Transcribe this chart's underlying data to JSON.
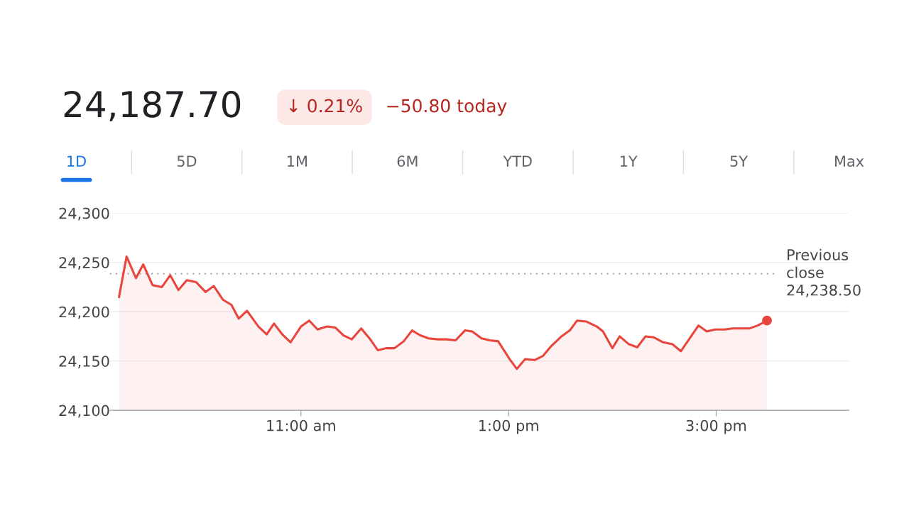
{
  "chart_data": {
    "type": "area",
    "annotations": [
      "24,187.70",
      "↓ 0.21%",
      "−50.80 today",
      "1D",
      "5D",
      "1M",
      "6M",
      "YTD",
      "1Y",
      "5Y",
      "Max"
    ],
    "series": [
      {
        "color": "#e8453c",
        "x": [
          9.247,
          9.32,
          9.41,
          9.48,
          9.57,
          9.66,
          9.74,
          9.82,
          9.9,
          9.99,
          10.08,
          10.16,
          10.25,
          10.33,
          10.4,
          10.48,
          10.59,
          10.67,
          10.74,
          10.82,
          10.9,
          11.0,
          11.08,
          11.16,
          11.25,
          11.33,
          11.41,
          11.49,
          11.58,
          11.66,
          11.74,
          11.82,
          11.9,
          11.99,
          12.07,
          12.15,
          12.23,
          12.32,
          12.4,
          12.49,
          12.58,
          12.65,
          12.74,
          12.82,
          12.9,
          13.01,
          13.08,
          13.16,
          13.25,
          13.33,
          13.41,
          13.51,
          13.59,
          13.66,
          13.75,
          13.85,
          13.91,
          14.0,
          14.07,
          14.16,
          14.24,
          14.32,
          14.4,
          14.49,
          14.58,
          14.66,
          14.83,
          14.91,
          14.99,
          15.08,
          15.16,
          15.24,
          15.32,
          15.4,
          15.49
        ],
        "values": [
          24215,
          24256,
          24234,
          24248,
          24227,
          24225,
          24237,
          24222,
          24232,
          24230,
          24220,
          24226,
          24212,
          24207,
          24193,
          24201,
          24185,
          24177,
          24188,
          24177,
          24169,
          24185,
          24191,
          24182,
          24185,
          24184,
          24176,
          24172,
          24183,
          24173,
          24161,
          24163,
          24163,
          24170,
          24181,
          24176,
          24173,
          24172,
          24172,
          24171,
          24181,
          24180,
          24173,
          24171,
          24170,
          24152,
          24142,
          24152,
          24151,
          24155,
          24165,
          24175,
          24181,
          24191,
          24190,
          24185,
          24180,
          24163,
          24175,
          24167,
          24164,
          24175,
          24174,
          24169,
          24167,
          24160,
          24186,
          24180,
          24182,
          24182,
          24183,
          24183,
          24183,
          24186,
          24191
        ]
      },
      {
        "type": "scatter",
        "color": "#e8453c",
        "x": [
          15.49
        ],
        "values": [
          24191
        ]
      }
    ],
    "xlim": [
      9.16,
      16.28
    ],
    "xticks": [
      {
        "value": 11,
        "label": "11:00 am"
      },
      {
        "value": 13,
        "label": "1:00 pm"
      },
      {
        "value": 15,
        "label": "3:00 pm"
      }
    ],
    "ylim": [
      24100,
      24300
    ],
    "yticks": [
      {
        "value": 24100,
        "label": "24,100"
      },
      {
        "value": 24150,
        "label": "24,150"
      },
      {
        "value": 24200,
        "label": "24,200"
      },
      {
        "value": 24250,
        "label": "24,250"
      },
      {
        "value": 24300,
        "label": "24,300"
      }
    ],
    "grid": "y",
    "ref_lines": [
      {
        "axis": "y",
        "value": 24238.5,
        "label": "Previous\nclose\n24,238.50",
        "color": "#888888",
        "line_style": "dotted"
      }
    ]
  }
}
